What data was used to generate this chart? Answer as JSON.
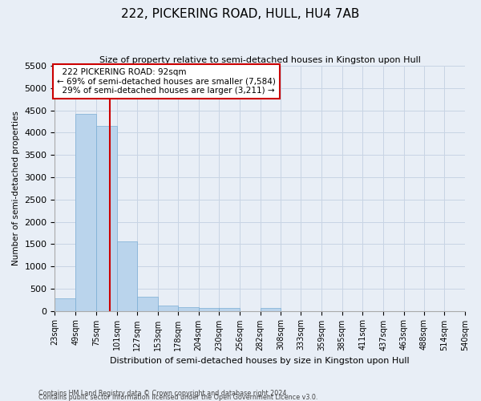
{
  "title": "222, PICKERING ROAD, HULL, HU4 7AB",
  "subtitle": "Size of property relative to semi-detached houses in Kingston upon Hull",
  "xlabel": "Distribution of semi-detached houses by size in Kingston upon Hull",
  "ylabel": "Number of semi-detached properties",
  "footer1": "Contains HM Land Registry data © Crown copyright and database right 2024.",
  "footer2": "Contains public sector information licensed under the Open Government Licence v3.0.",
  "property_size": 92,
  "property_label": "222 PICKERING ROAD: 92sqm",
  "pct_smaller": 69,
  "n_smaller": 7584,
  "pct_larger": 29,
  "n_larger": 3211,
  "bin_edges": [
    23,
    49,
    75,
    101,
    127,
    153,
    178,
    204,
    230,
    256,
    282,
    308,
    333,
    359,
    385,
    411,
    437,
    463,
    488,
    514,
    540
  ],
  "bin_counts": [
    280,
    4430,
    4150,
    1560,
    320,
    120,
    80,
    70,
    70,
    0,
    70,
    0,
    0,
    0,
    0,
    0,
    0,
    0,
    0,
    0
  ],
  "bar_color": "#bad4ec",
  "bar_edge_color": "#7aadd4",
  "vline_color": "#cc0000",
  "annotation_box_color": "#cc0000",
  "grid_color": "#c8d4e4",
  "bg_color": "#e8eef6",
  "ylim": [
    0,
    5500
  ],
  "yticks": [
    0,
    500,
    1000,
    1500,
    2000,
    2500,
    3000,
    3500,
    4000,
    4500,
    5000,
    5500
  ]
}
